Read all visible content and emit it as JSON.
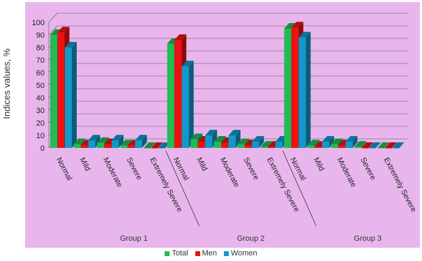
{
  "chart_data": {
    "type": "bar",
    "ylabel": "Indices values, %",
    "ylim": [
      0,
      100
    ],
    "yticks": [
      0,
      10,
      20,
      30,
      40,
      50,
      60,
      70,
      80,
      90,
      100
    ],
    "grid": true,
    "legend_position": "bottom",
    "groups": [
      {
        "label": "Group 1",
        "categories": [
          "Normal",
          "Mild",
          "Moderate",
          "Severe",
          "Extremely Severe"
        ]
      },
      {
        "label": "Group 2",
        "categories": [
          "Normal",
          "Mild",
          "Moderate",
          "Severe",
          "Extremely Severe"
        ]
      },
      {
        "label": "Group 3",
        "categories": [
          "Normal",
          "Mild",
          "Moderate",
          "Severe",
          "Extremely Severe"
        ]
      }
    ],
    "series": [
      {
        "name": "Total",
        "color": "#22bb55",
        "values": [
          90,
          3,
          4,
          2,
          0,
          83,
          7,
          5,
          3,
          1,
          95,
          2,
          3,
          1,
          0
        ]
      },
      {
        "name": "Men",
        "color": "#ee1111",
        "values": [
          92,
          2,
          3,
          2,
          0,
          86,
          5,
          4,
          2,
          1,
          96,
          1,
          2,
          0,
          0
        ]
      },
      {
        "name": "Women",
        "color": "#1199cc",
        "values": [
          80,
          6,
          6,
          6,
          0,
          65,
          10,
          10,
          5,
          5,
          88,
          5,
          5,
          0,
          0
        ]
      }
    ]
  },
  "legend": [
    {
      "label": "Total",
      "color": "#22bb55"
    },
    {
      "label": "Men",
      "color": "#ee1111"
    },
    {
      "label": "Women",
      "color": "#1199cc"
    }
  ]
}
